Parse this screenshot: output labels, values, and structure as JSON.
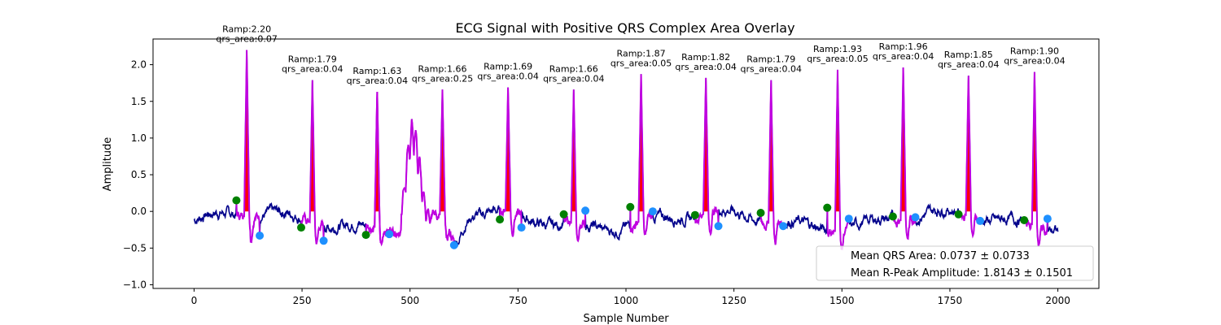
{
  "chart_data": {
    "type": "line",
    "title": "ECG Signal with Positive QRS Complex Area Overlay",
    "xlabel": "Sample Number",
    "ylabel": "Amplitude",
    "xlim": [
      -95,
      2095
    ],
    "ylim": [
      -1.05,
      2.35
    ],
    "xticks": [
      0,
      250,
      500,
      750,
      1000,
      1250,
      1500,
      1750,
      2000
    ],
    "yticks": [
      -1.0,
      -0.5,
      0.0,
      0.5,
      1.0,
      1.5,
      2.0
    ],
    "xtick_labels": [
      "0",
      "250",
      "500",
      "750",
      "1000",
      "1250",
      "1500",
      "1750",
      "2000"
    ],
    "ytick_labels": [
      "−1.0",
      "−0.5",
      "0.0",
      "0.5",
      "1.0",
      "1.5",
      "2.0"
    ],
    "grid": false,
    "legend_position": "lower-right",
    "colors": {
      "signal": "#00008b",
      "qrs_segment": "#c000e0",
      "area_fill": "#ff0000",
      "q_marker": "#008000",
      "s_marker": "#1e90ff"
    },
    "r_peaks": [
      {
        "x": 122,
        "y": 2.2,
        "label1": "Ramp:2.20",
        "label2": "qrs_area:0.07"
      },
      {
        "x": 274,
        "y": 1.79,
        "label1": "Ramp:1.79",
        "label2": "qrs_area:0.04"
      },
      {
        "x": 424,
        "y": 1.63,
        "label1": "Ramp:1.63",
        "label2": "qrs_area:0.04"
      },
      {
        "x": 575,
        "y": 1.66,
        "label1": "Ramp:1.66",
        "label2": "qrs_area:0.25"
      },
      {
        "x": 727,
        "y": 1.69,
        "label1": "Ramp:1.69",
        "label2": "qrs_area:0.04"
      },
      {
        "x": 879,
        "y": 1.66,
        "label1": "Ramp:1.66",
        "label2": "qrs_area:0.04"
      },
      {
        "x": 1035,
        "y": 1.87,
        "label1": "Ramp:1.87",
        "label2": "qrs_area:0.05"
      },
      {
        "x": 1185,
        "y": 1.82,
        "label1": "Ramp:1.82",
        "label2": "qrs_area:0.04"
      },
      {
        "x": 1336,
        "y": 1.79,
        "label1": "Ramp:1.79",
        "label2": "qrs_area:0.04"
      },
      {
        "x": 1490,
        "y": 1.93,
        "label1": "Ramp:1.93",
        "label2": "qrs_area:0.05"
      },
      {
        "x": 1642,
        "y": 1.96,
        "label1": "Ramp:1.96",
        "label2": "qrs_area:0.04"
      },
      {
        "x": 1793,
        "y": 1.85,
        "label1": "Ramp:1.85",
        "label2": "qrs_area:0.04"
      },
      {
        "x": 1946,
        "y": 1.9,
        "label1": "Ramp:1.90",
        "label2": "qrs_area:0.04"
      }
    ],
    "q_points": [
      {
        "x": 98,
        "y": 0.15
      },
      {
        "x": 248,
        "y": -0.22
      },
      {
        "x": 398,
        "y": -0.32
      },
      {
        "x": 708,
        "y": -0.11
      },
      {
        "x": 856,
        "y": -0.04
      },
      {
        "x": 1010,
        "y": 0.06
      },
      {
        "x": 1160,
        "y": -0.05
      },
      {
        "x": 1312,
        "y": -0.02
      },
      {
        "x": 1466,
        "y": 0.05
      },
      {
        "x": 1618,
        "y": -0.07
      },
      {
        "x": 1770,
        "y": -0.04
      },
      {
        "x": 1922,
        "y": -0.12
      }
    ],
    "s_points": [
      {
        "x": 152,
        "y": -0.33
      },
      {
        "x": 300,
        "y": -0.4
      },
      {
        "x": 452,
        "y": -0.31
      },
      {
        "x": 602,
        "y": -0.46
      },
      {
        "x": 758,
        "y": -0.22
      },
      {
        "x": 906,
        "y": 0.01
      },
      {
        "x": 1062,
        "y": 0.0
      },
      {
        "x": 1214,
        "y": -0.2
      },
      {
        "x": 1364,
        "y": -0.2
      },
      {
        "x": 1516,
        "y": -0.1
      },
      {
        "x": 1670,
        "y": -0.08
      },
      {
        "x": 1820,
        "y": -0.13
      },
      {
        "x": 1976,
        "y": -0.1
      }
    ],
    "legend": [
      "Mean QRS Area: 0.0737 ± 0.0733",
      "Mean R-Peak Amplitude: 1.8143 ± 0.1501"
    ]
  }
}
